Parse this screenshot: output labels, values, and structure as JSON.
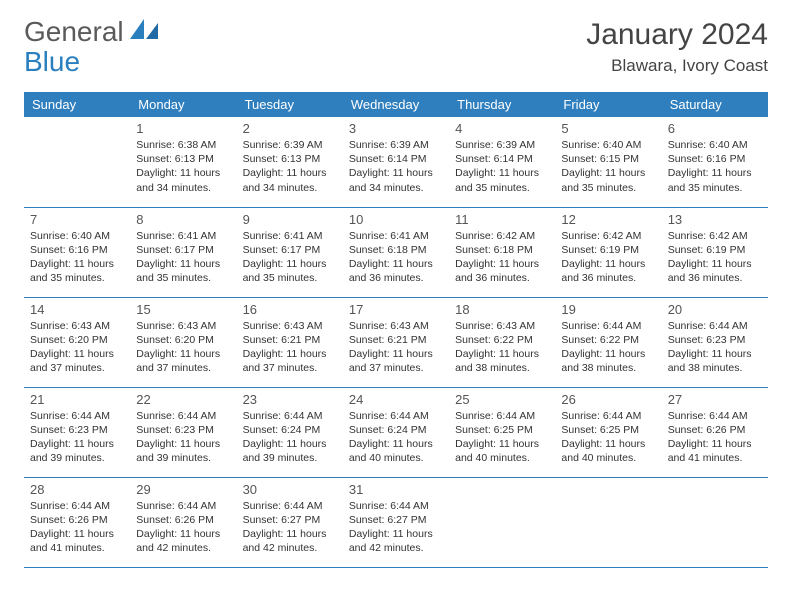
{
  "brand": {
    "part1": "General",
    "part2": "Blue"
  },
  "title": "January 2024",
  "subtitle": "Blawara, Ivory Coast",
  "colors": {
    "header_bg": "#2f7fbf",
    "header_text": "#ffffff",
    "rule": "#2f7fbf",
    "brand_gray": "#5a5a5a",
    "brand_blue": "#2a7fbf"
  },
  "dayNames": [
    "Sunday",
    "Monday",
    "Tuesday",
    "Wednesday",
    "Thursday",
    "Friday",
    "Saturday"
  ],
  "weeks": [
    [
      null,
      {
        "n": "1",
        "sr": "Sunrise: 6:38 AM",
        "ss": "Sunset: 6:13 PM",
        "d1": "Daylight: 11 hours",
        "d2": "and 34 minutes."
      },
      {
        "n": "2",
        "sr": "Sunrise: 6:39 AM",
        "ss": "Sunset: 6:13 PM",
        "d1": "Daylight: 11 hours",
        "d2": "and 34 minutes."
      },
      {
        "n": "3",
        "sr": "Sunrise: 6:39 AM",
        "ss": "Sunset: 6:14 PM",
        "d1": "Daylight: 11 hours",
        "d2": "and 34 minutes."
      },
      {
        "n": "4",
        "sr": "Sunrise: 6:39 AM",
        "ss": "Sunset: 6:14 PM",
        "d1": "Daylight: 11 hours",
        "d2": "and 35 minutes."
      },
      {
        "n": "5",
        "sr": "Sunrise: 6:40 AM",
        "ss": "Sunset: 6:15 PM",
        "d1": "Daylight: 11 hours",
        "d2": "and 35 minutes."
      },
      {
        "n": "6",
        "sr": "Sunrise: 6:40 AM",
        "ss": "Sunset: 6:16 PM",
        "d1": "Daylight: 11 hours",
        "d2": "and 35 minutes."
      }
    ],
    [
      {
        "n": "7",
        "sr": "Sunrise: 6:40 AM",
        "ss": "Sunset: 6:16 PM",
        "d1": "Daylight: 11 hours",
        "d2": "and 35 minutes."
      },
      {
        "n": "8",
        "sr": "Sunrise: 6:41 AM",
        "ss": "Sunset: 6:17 PM",
        "d1": "Daylight: 11 hours",
        "d2": "and 35 minutes."
      },
      {
        "n": "9",
        "sr": "Sunrise: 6:41 AM",
        "ss": "Sunset: 6:17 PM",
        "d1": "Daylight: 11 hours",
        "d2": "and 35 minutes."
      },
      {
        "n": "10",
        "sr": "Sunrise: 6:41 AM",
        "ss": "Sunset: 6:18 PM",
        "d1": "Daylight: 11 hours",
        "d2": "and 36 minutes."
      },
      {
        "n": "11",
        "sr": "Sunrise: 6:42 AM",
        "ss": "Sunset: 6:18 PM",
        "d1": "Daylight: 11 hours",
        "d2": "and 36 minutes."
      },
      {
        "n": "12",
        "sr": "Sunrise: 6:42 AM",
        "ss": "Sunset: 6:19 PM",
        "d1": "Daylight: 11 hours",
        "d2": "and 36 minutes."
      },
      {
        "n": "13",
        "sr": "Sunrise: 6:42 AM",
        "ss": "Sunset: 6:19 PM",
        "d1": "Daylight: 11 hours",
        "d2": "and 36 minutes."
      }
    ],
    [
      {
        "n": "14",
        "sr": "Sunrise: 6:43 AM",
        "ss": "Sunset: 6:20 PM",
        "d1": "Daylight: 11 hours",
        "d2": "and 37 minutes."
      },
      {
        "n": "15",
        "sr": "Sunrise: 6:43 AM",
        "ss": "Sunset: 6:20 PM",
        "d1": "Daylight: 11 hours",
        "d2": "and 37 minutes."
      },
      {
        "n": "16",
        "sr": "Sunrise: 6:43 AM",
        "ss": "Sunset: 6:21 PM",
        "d1": "Daylight: 11 hours",
        "d2": "and 37 minutes."
      },
      {
        "n": "17",
        "sr": "Sunrise: 6:43 AM",
        "ss": "Sunset: 6:21 PM",
        "d1": "Daylight: 11 hours",
        "d2": "and 37 minutes."
      },
      {
        "n": "18",
        "sr": "Sunrise: 6:43 AM",
        "ss": "Sunset: 6:22 PM",
        "d1": "Daylight: 11 hours",
        "d2": "and 38 minutes."
      },
      {
        "n": "19",
        "sr": "Sunrise: 6:44 AM",
        "ss": "Sunset: 6:22 PM",
        "d1": "Daylight: 11 hours",
        "d2": "and 38 minutes."
      },
      {
        "n": "20",
        "sr": "Sunrise: 6:44 AM",
        "ss": "Sunset: 6:23 PM",
        "d1": "Daylight: 11 hours",
        "d2": "and 38 minutes."
      }
    ],
    [
      {
        "n": "21",
        "sr": "Sunrise: 6:44 AM",
        "ss": "Sunset: 6:23 PM",
        "d1": "Daylight: 11 hours",
        "d2": "and 39 minutes."
      },
      {
        "n": "22",
        "sr": "Sunrise: 6:44 AM",
        "ss": "Sunset: 6:23 PM",
        "d1": "Daylight: 11 hours",
        "d2": "and 39 minutes."
      },
      {
        "n": "23",
        "sr": "Sunrise: 6:44 AM",
        "ss": "Sunset: 6:24 PM",
        "d1": "Daylight: 11 hours",
        "d2": "and 39 minutes."
      },
      {
        "n": "24",
        "sr": "Sunrise: 6:44 AM",
        "ss": "Sunset: 6:24 PM",
        "d1": "Daylight: 11 hours",
        "d2": "and 40 minutes."
      },
      {
        "n": "25",
        "sr": "Sunrise: 6:44 AM",
        "ss": "Sunset: 6:25 PM",
        "d1": "Daylight: 11 hours",
        "d2": "and 40 minutes."
      },
      {
        "n": "26",
        "sr": "Sunrise: 6:44 AM",
        "ss": "Sunset: 6:25 PM",
        "d1": "Daylight: 11 hours",
        "d2": "and 40 minutes."
      },
      {
        "n": "27",
        "sr": "Sunrise: 6:44 AM",
        "ss": "Sunset: 6:26 PM",
        "d1": "Daylight: 11 hours",
        "d2": "and 41 minutes."
      }
    ],
    [
      {
        "n": "28",
        "sr": "Sunrise: 6:44 AM",
        "ss": "Sunset: 6:26 PM",
        "d1": "Daylight: 11 hours",
        "d2": "and 41 minutes."
      },
      {
        "n": "29",
        "sr": "Sunrise: 6:44 AM",
        "ss": "Sunset: 6:26 PM",
        "d1": "Daylight: 11 hours",
        "d2": "and 42 minutes."
      },
      {
        "n": "30",
        "sr": "Sunrise: 6:44 AM",
        "ss": "Sunset: 6:27 PM",
        "d1": "Daylight: 11 hours",
        "d2": "and 42 minutes."
      },
      {
        "n": "31",
        "sr": "Sunrise: 6:44 AM",
        "ss": "Sunset: 6:27 PM",
        "d1": "Daylight: 11 hours",
        "d2": "and 42 minutes."
      },
      null,
      null,
      null
    ]
  ]
}
